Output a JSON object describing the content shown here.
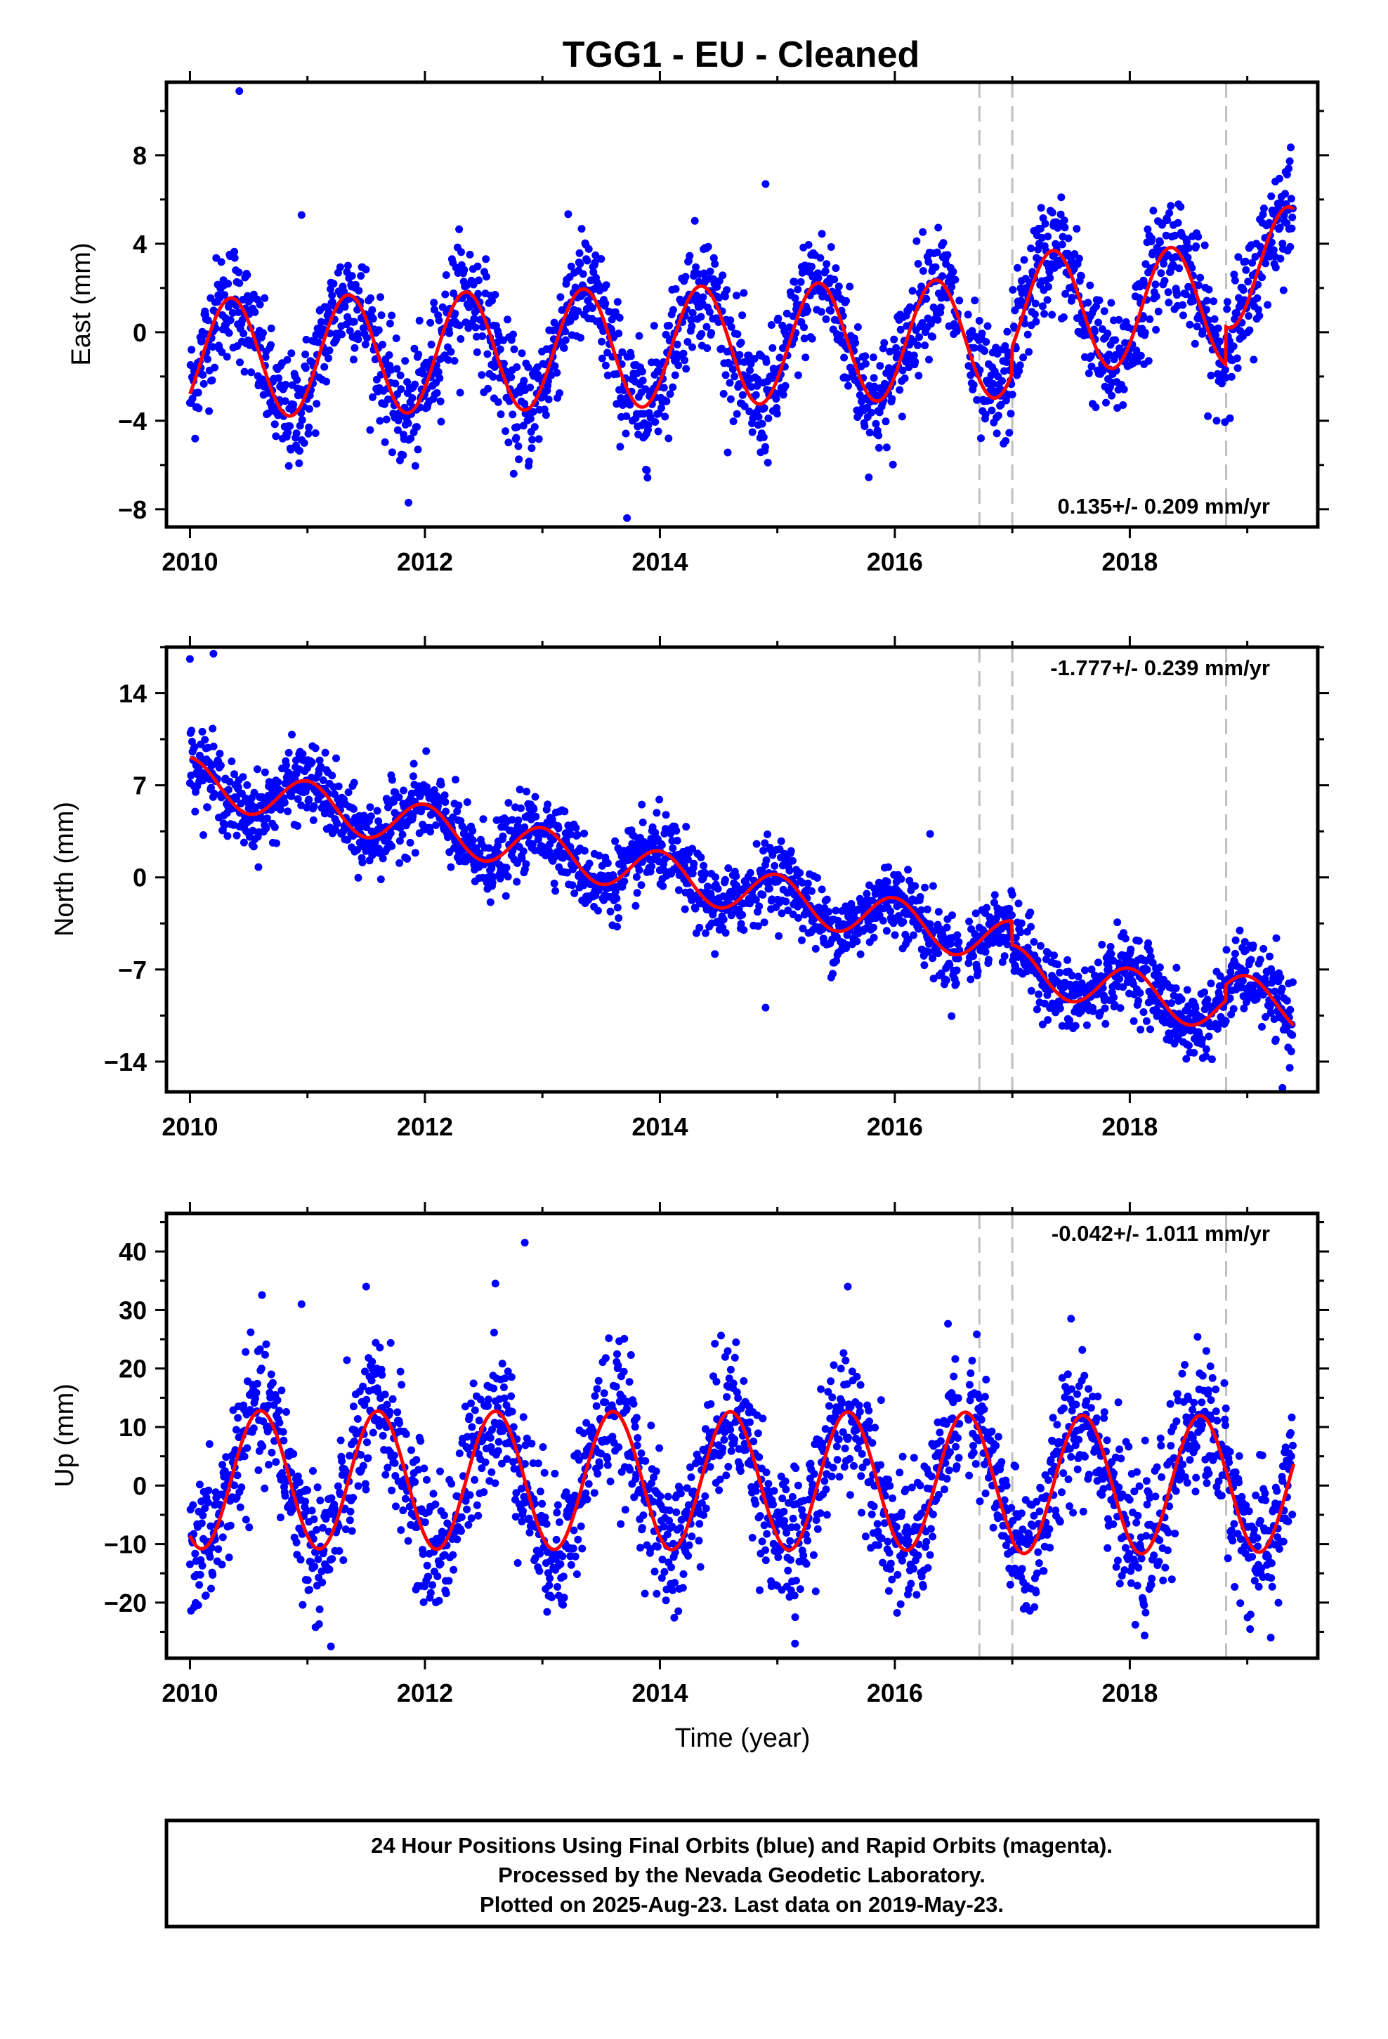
{
  "title": "TGG1  - EU - Cleaned",
  "xlabel": "Time (year)",
  "footer": {
    "line1": "24 Hour Positions Using Final Orbits (blue) and Rapid Orbits (magenta).",
    "line2": "Processed by the Nevada Geodetic Laboratory.",
    "line3": "Plotted on 2025-Aug-23. Last data on 2019-May-23."
  },
  "colors": {
    "data": "#0000ff",
    "model": "#ff0000",
    "breaks": "#bfbfbf"
  },
  "chart_data": [
    {
      "type": "scatter",
      "component": "east",
      "ylabel": "East (mm)",
      "annotation": "0.135+/- 0.209 mm/yr",
      "xlim": [
        2009.8,
        2019.6
      ],
      "ylim": [
        -8.8,
        11.3
      ],
      "xticks": [
        2010,
        2012,
        2014,
        2016,
        2018
      ],
      "yticks": [
        -8,
        -4,
        0,
        4,
        8
      ],
      "breaks": [
        2016.72,
        2017.0,
        2018.82
      ],
      "model": {
        "rate": 0.135,
        "amplitude": 2.7,
        "peak_phase": 0.35,
        "noise": 1.3,
        "offset": [
          {
            "start": 2010.0,
            "end": 2017.0,
            "value": -1.2
          },
          {
            "start": 2017.0,
            "end": 2018.82,
            "value": 0.0
          },
          {
            "start": 2018.82,
            "end": 2019.4,
            "value": 1.7
          }
        ]
      },
      "outliers": [
        [
          2010.42,
          10.9
        ],
        [
          2013.72,
          -8.4
        ],
        [
          2010.95,
          5.3
        ],
        [
          2014.9,
          6.7
        ],
        [
          2011.86,
          -7.7
        ]
      ],
      "series": [
        {
          "name": "Final Orbits",
          "x": [
            2010.0,
            2010.35,
            2010.7,
            2011.35,
            2011.7,
            2012.35,
            2012.7,
            2013.3,
            2013.7,
            2014.3,
            2014.7,
            2015.3,
            2015.7,
            2016.3,
            2016.7,
            2017.0,
            2017.35,
            2017.7,
            2018.35,
            2018.75,
            2019.4
          ],
          "y": [
            -1.2,
            1.6,
            -3.8,
            1.7,
            -3.7,
            1.8,
            -3.6,
            1.9,
            -3.4,
            2.0,
            -3.3,
            2.2,
            -3.1,
            2.3,
            -3.4,
            0.5,
            3.4,
            -1.9,
            3.6,
            -1.8,
            4.7
          ]
        }
      ]
    },
    {
      "type": "scatter",
      "component": "north",
      "ylabel": "North (mm)",
      "annotation": "-1.777+/- 0.239 mm/yr",
      "xlim": [
        2009.8,
        2019.6
      ],
      "ylim": [
        -16.3,
        17.5
      ],
      "xticks": [
        2010,
        2012,
        2014,
        2016,
        2018
      ],
      "yticks": [
        -14,
        -7,
        0,
        7,
        14
      ],
      "breaks": [
        2016.72,
        2017.0,
        2018.82
      ],
      "model": {
        "rate": -1.777,
        "amplitude": 1.7,
        "peak_phase": 0.0,
        "noise": 1.4,
        "offset": [
          {
            "start": 2010.0,
            "end": 2017.0,
            "value": 7.4
          },
          {
            "start": 2017.0,
            "end": 2018.82,
            "value": 5.6
          },
          {
            "start": 2018.82,
            "end": 2019.4,
            "value": 6.8
          }
        ]
      },
      "outliers": [
        [
          2010.0,
          16.6
        ],
        [
          2010.2,
          17.0
        ],
        [
          2014.9,
          -9.9
        ],
        [
          2016.3,
          3.3
        ],
        [
          2019.3,
          -16.0
        ]
      ],
      "series": [
        {
          "name": "Final Orbits",
          "x": [
            2010.0,
            2010.5,
            2011.0,
            2011.5,
            2012.0,
            2012.5,
            2013.0,
            2013.5,
            2014.0,
            2014.5,
            2015.0,
            2015.5,
            2016.0,
            2016.5,
            2017.0,
            2017.5,
            2018.0,
            2018.5,
            2019.0,
            2019.4
          ],
          "y": [
            10.8,
            6.3,
            9.0,
            4.5,
            7.3,
            2.5,
            5.5,
            0.9,
            3.6,
            -0.7,
            2.0,
            -2.5,
            0.0,
            -4.2,
            -1.8,
            -9.0,
            -6.3,
            -10.9,
            -9.2,
            -13.8
          ]
        }
      ]
    },
    {
      "type": "scatter",
      "component": "up",
      "ylabel": "Up (mm)",
      "annotation": "-0.042+/- 1.011 mm/yr",
      "xlim": [
        2009.8,
        2019.6
      ],
      "ylim": [
        -29.5,
        46.5
      ],
      "xticks": [
        2010,
        2012,
        2014,
        2016,
        2018
      ],
      "yticks": [
        -20,
        -10,
        0,
        10,
        20,
        30,
        40
      ],
      "breaks": [
        2016.72,
        2017.0,
        2018.82
      ],
      "model": {
        "rate": -0.042,
        "amplitude": 11.8,
        "peak_phase": 0.6,
        "noise": 6.0,
        "offset": [
          {
            "start": 2010.0,
            "end": 2017.0,
            "value": 1.0
          },
          {
            "start": 2017.0,
            "end": 2018.82,
            "value": 0.5
          },
          {
            "start": 2018.82,
            "end": 2019.4,
            "value": 0.8
          }
        ]
      },
      "outliers": [
        [
          2012.85,
          41.5
        ],
        [
          2011.5,
          34.0
        ],
        [
          2012.6,
          34.5
        ],
        [
          2015.6,
          34.0
        ],
        [
          2011.2,
          -27.5
        ],
        [
          2015.15,
          -27.0
        ],
        [
          2017.5,
          28.5
        ],
        [
          2019.2,
          -26.0
        ],
        [
          2010.95,
          31.0
        ]
      ],
      "series": [
        {
          "name": "Final Orbits",
          "x": [
            2010.0,
            2010.6,
            2011.1,
            2011.6,
            2012.1,
            2012.6,
            2013.1,
            2013.6,
            2014.1,
            2014.6,
            2015.1,
            2015.6,
            2016.1,
            2016.6,
            2017.0,
            2017.6,
            2018.1,
            2018.6,
            2019.1,
            2019.4
          ],
          "y": [
            -8.0,
            12.8,
            -10.5,
            13.0,
            -10.5,
            12.8,
            -10.5,
            12.9,
            -10.6,
            12.9,
            -10.6,
            12.8,
            -10.7,
            12.8,
            -13.0,
            12.3,
            -11.0,
            12.2,
            -10.0,
            3.5
          ]
        }
      ]
    }
  ]
}
